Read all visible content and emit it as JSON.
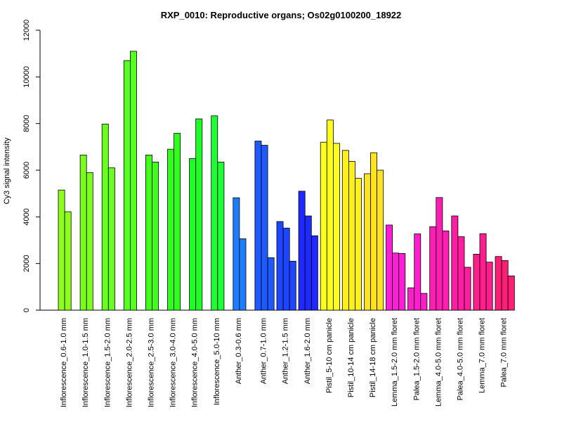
{
  "chart_data": {
    "type": "bar",
    "title": "RXP_0010: Reproductive organs; Os02g0100200_18922",
    "xlabel": "",
    "ylabel": "Cy3 signal intensity",
    "ylim": [
      0,
      12000
    ],
    "yticks": [
      0,
      2000,
      4000,
      6000,
      8000,
      10000,
      12000
    ],
    "grid": false,
    "legend": "none",
    "groups": [
      {
        "label": "Inflorescence_0.6-1.0 mm",
        "color": "#8CFF1E",
        "values": [
          5150,
          4220
        ]
      },
      {
        "label": "Inflorescence_1.0-1.5 mm",
        "color": "#7AFF1E",
        "values": [
          6650,
          5900
        ]
      },
      {
        "label": "Inflorescence_1.5-2.0 mm",
        "color": "#68FF1E",
        "values": [
          7980,
          6100
        ]
      },
      {
        "label": "Inflorescence_2.0-2.5 mm",
        "color": "#55FF1E",
        "values": [
          10700,
          11100
        ]
      },
      {
        "label": "Inflorescence_2.5-3.0 mm",
        "color": "#42FF1E",
        "values": [
          6650,
          6350
        ]
      },
      {
        "label": "Inflorescence_3.0-4.0 mm",
        "color": "#30FF1E",
        "values": [
          6900,
          7580
        ]
      },
      {
        "label": "Inflorescence_4.0-5.0 mm",
        "color": "#1EFF26",
        "values": [
          6500,
          8200
        ]
      },
      {
        "label": "Inflorescence_5.0-10 mm",
        "color": "#1EFF38",
        "values": [
          8330,
          6350
        ]
      },
      {
        "label": "Anther_0.3-0.6 mm",
        "color": "#1E7CFF",
        "values": [
          4820,
          3060
        ]
      },
      {
        "label": "Anther_0.7-1.0 mm",
        "color": "#1E5AFF",
        "values": [
          7250,
          7070,
          2250
        ]
      },
      {
        "label": "Anther_1.2-1.5 mm",
        "color": "#1E45FF",
        "values": [
          3800,
          3520,
          2100
        ]
      },
      {
        "label": "Anther_1.6-2.0 mm",
        "color": "#1E2AFF",
        "values": [
          5100,
          4040,
          3190
        ]
      },
      {
        "label": "Pistil_5-10 cm panicle",
        "color": "#FFFF1E",
        "values": [
          7200,
          8150,
          7150
        ]
      },
      {
        "label": "Pistil_10-14 cm panicle",
        "color": "#FFF01E",
        "values": [
          6850,
          6380,
          5650
        ]
      },
      {
        "label": "Pistil_14-18 cm panicle",
        "color": "#FFE31E",
        "values": [
          5850,
          6750,
          6000
        ]
      },
      {
        "label": "Lemma_1.5-2.0 mm floret",
        "color": "#FF1ED8",
        "values": [
          3650,
          2450,
          2430
        ]
      },
      {
        "label": "Palea_1.5-2.0 mm floret",
        "color": "#FF1ECC",
        "values": [
          960,
          3270,
          720
        ]
      },
      {
        "label": "Lemma_4.0-5.0 mm floret",
        "color": "#FF1EB4",
        "values": [
          3580,
          4830,
          3400
        ]
      },
      {
        "label": "Palea_4.0-5.0 mm floret",
        "color": "#FF1EA2",
        "values": [
          4040,
          3150,
          1840
        ]
      },
      {
        "label": "Lemma_7.0 mm floret",
        "color": "#FF1E8C",
        "values": [
          2400,
          3280,
          2060
        ]
      },
      {
        "label": "Palea_7.0 mm floret",
        "color": "#FF1E76",
        "values": [
          2300,
          2130,
          1470
        ]
      }
    ]
  }
}
